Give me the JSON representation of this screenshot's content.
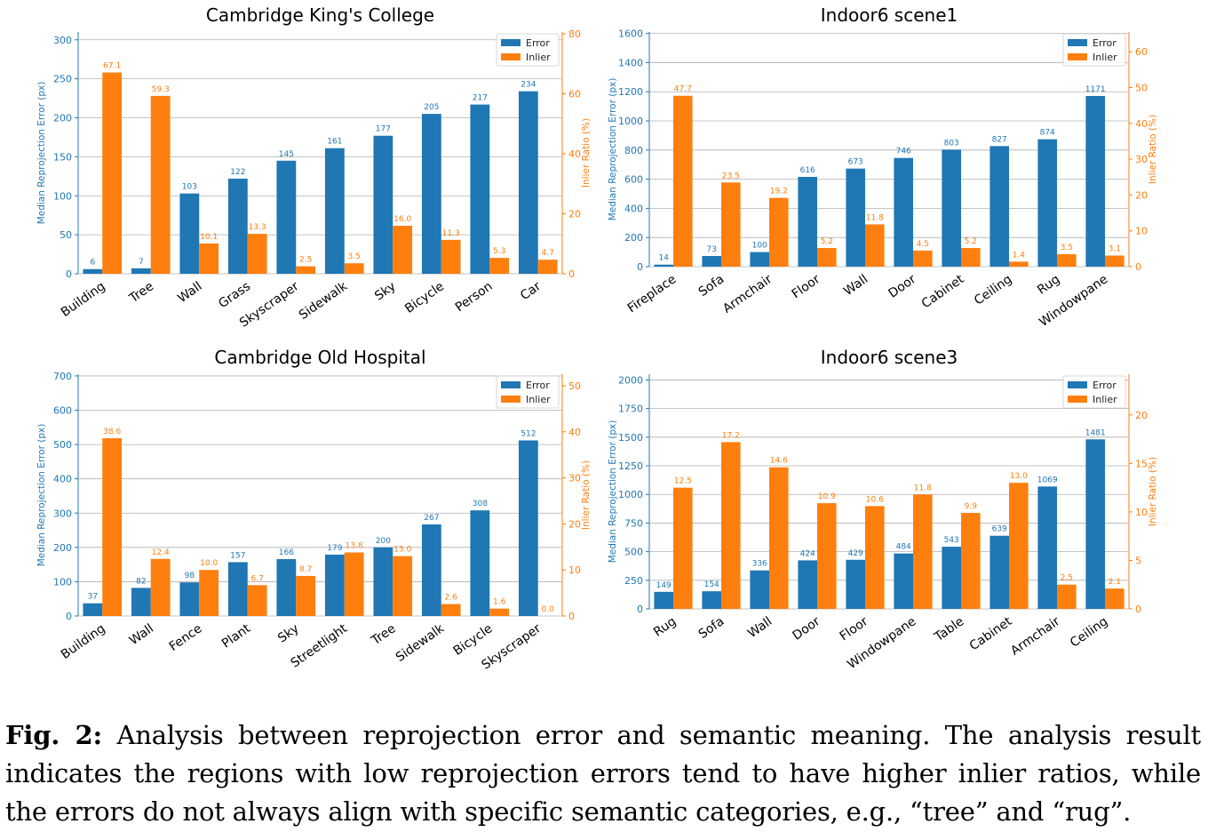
{
  "chart_data": [
    {
      "type": "bar",
      "title": "Cambridge King's College",
      "ylabel": "Median Reprojection Error (px)",
      "y2label": "Inlier Ratio (%)",
      "categories": [
        "Building",
        "Tree",
        "Wall",
        "Grass",
        "Skyscraper",
        "Sidewalk",
        "Sky",
        "Bicycle",
        "Person",
        "Car"
      ],
      "series": [
        {
          "name": "Error",
          "axis": "left",
          "color": "#1f77b4",
          "values": [
            6,
            7,
            103,
            122,
            145,
            161,
            177,
            205,
            217,
            234
          ],
          "labels": [
            "6",
            "7",
            "103",
            "122",
            "145",
            "161",
            "177",
            "205",
            "217",
            "234"
          ]
        },
        {
          "name": "Inlier",
          "axis": "right",
          "color": "#ff7f0e",
          "values": [
            67.1,
            59.3,
            10.1,
            13.3,
            2.5,
            3.5,
            16.0,
            11.3,
            5.3,
            4.7
          ],
          "labels": [
            "67.1",
            "59.3",
            "10.1",
            "13.3",
            "2.5",
            "3.5",
            "16.0",
            "11.3",
            "5.3",
            "4.7"
          ]
        }
      ],
      "ylim": [
        0,
        310
      ],
      "yticks": [
        0,
        50,
        100,
        150,
        200,
        250,
        300
      ],
      "y2lim": [
        0,
        80.6
      ],
      "y2ticks": [
        0,
        20,
        40,
        60,
        80
      ],
      "legend": "top-right"
    },
    {
      "type": "bar",
      "title": "Indoor6 scene1",
      "ylabel": "Median Reprojection Error (px)",
      "y2label": "Inlier Ratio (%)",
      "categories": [
        "Fireplace",
        "Sofa",
        "Armchair",
        "Floor",
        "Wall",
        "Door",
        "Cabinet",
        "Ceiling",
        "Rug",
        "Windowpane"
      ],
      "series": [
        {
          "name": "Error",
          "axis": "left",
          "color": "#1f77b4",
          "values": [
            14,
            73,
            100,
            616,
            673,
            746,
            803,
            827,
            874,
            1171
          ],
          "labels": [
            "14",
            "73",
            "100",
            "616",
            "673",
            "746",
            "803",
            "827",
            "874",
            "1171"
          ]
        },
        {
          "name": "Inlier",
          "axis": "right",
          "color": "#ff7f0e",
          "values": [
            47.7,
            23.5,
            19.2,
            5.2,
            11.8,
            4.5,
            5.2,
            1.4,
            3.5,
            3.1
          ],
          "labels": [
            "47.7",
            "23.5",
            "19.2",
            "5.2",
            "11.8",
            "4.5",
            "5.2",
            "1.4",
            "3.5",
            "3.1"
          ]
        }
      ],
      "ylim": [
        0,
        1610
      ],
      "yticks": [
        0,
        200,
        400,
        600,
        800,
        1000,
        1200,
        1400,
        1600
      ],
      "y2lim": [
        0,
        65.5
      ],
      "y2ticks": [
        0,
        10,
        20,
        30,
        40,
        50,
        60
      ],
      "legend": "top-right"
    },
    {
      "type": "bar",
      "title": "Cambridge Old Hospital",
      "ylabel": "Median Reprojection Error (px)",
      "y2label": "Inlier Ratio (%)",
      "categories": [
        "Building",
        "Wall",
        "Fence",
        "Plant",
        "Sky",
        "Streetlight",
        "Tree",
        "Sidewalk",
        "Bicycle",
        "Skyscraper"
      ],
      "series": [
        {
          "name": "Error",
          "axis": "left",
          "color": "#1f77b4",
          "values": [
            37,
            82,
            98,
            157,
            166,
            179,
            200,
            267,
            308,
            512
          ],
          "labels": [
            "37",
            "82",
            "98",
            "157",
            "166",
            "179",
            "200",
            "267",
            "308",
            "512"
          ]
        },
        {
          "name": "Inlier",
          "axis": "right",
          "color": "#ff7f0e",
          "values": [
            38.6,
            12.4,
            10.0,
            6.7,
            8.7,
            13.8,
            13.0,
            2.6,
            1.6,
            0.0
          ],
          "labels": [
            "38.6",
            "12.4",
            "10.0",
            "6.7",
            "8.7",
            "13.8",
            "13.0",
            "2.6",
            "1.6",
            "0.0"
          ]
        }
      ],
      "ylim": [
        0,
        705
      ],
      "yticks": [
        0,
        100,
        200,
        300,
        400,
        500,
        600,
        700
      ],
      "y2lim": [
        0,
        52.5
      ],
      "y2ticks": [
        0,
        10,
        20,
        30,
        40,
        50
      ],
      "legend": "top-right"
    },
    {
      "type": "bar",
      "title": "Indoor6 scene3",
      "ylabel": "Median Reprojection Error (px)",
      "y2label": "Inlier Ratio (%)",
      "categories": [
        "Rug",
        "Sofa",
        "Wall",
        "Door",
        "Floor",
        "Windowpane",
        "Table",
        "Cabinet",
        "Armchair",
        "Ceiling"
      ],
      "series": [
        {
          "name": "Error",
          "axis": "left",
          "color": "#1f77b4",
          "values": [
            149,
            154,
            336,
            424,
            429,
            484,
            543,
            639,
            1069,
            1481
          ],
          "labels": [
            "149",
            "154",
            "336",
            "424",
            "429",
            "484",
            "543",
            "639",
            "1069",
            "1481"
          ]
        },
        {
          "name": "Inlier",
          "axis": "right",
          "color": "#ff7f0e",
          "values": [
            12.5,
            17.2,
            14.6,
            10.9,
            10.6,
            11.8,
            9.9,
            13.0,
            2.5,
            2.1
          ],
          "labels": [
            "12.5",
            "17.2",
            "14.6",
            "10.9",
            "10.6",
            "11.8",
            "9.9",
            "13.0",
            "2.5",
            "2.1"
          ]
        }
      ],
      "ylim": [
        0,
        2050
      ],
      "yticks": [
        0,
        250,
        500,
        750,
        1000,
        1250,
        1500,
        1750,
        2000
      ],
      "y2lim": [
        0,
        24.2
      ],
      "y2ticks": [
        0,
        5,
        10,
        15,
        20
      ],
      "legend": "top-right"
    }
  ],
  "caption": {
    "label": "Fig. 2:",
    "text": "Analysis between reprojection error and semantic meaning. The analysis result indicates the regions with low reprojection errors tend to have higher inlier ratios, while the errors do not always align with specific semantic categories, e.g., “tree” and “rug”."
  }
}
